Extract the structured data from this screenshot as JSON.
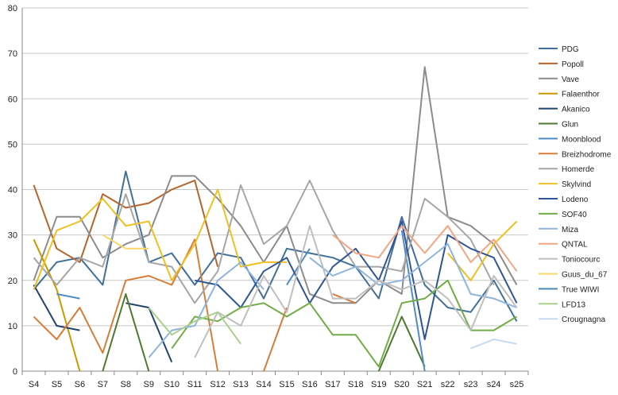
{
  "chart_data": {
    "type": "line",
    "title": "",
    "xlabel": "",
    "ylabel": "",
    "ylim": [
      0,
      80
    ],
    "yticks": [
      0,
      10,
      20,
      30,
      40,
      50,
      60,
      70,
      80
    ],
    "grid": true,
    "legend_position": "right",
    "categories": [
      "S4",
      "S5",
      "S6",
      "S7",
      "S8",
      "S9",
      "S10",
      "S11",
      "S12",
      "S13",
      "S14",
      "S15",
      "S16",
      "S17",
      "S18",
      "S19",
      "S20",
      "S21",
      "s22",
      "s23",
      "s24",
      "s25"
    ],
    "series": [
      {
        "name": "PDG",
        "color": "#41709b",
        "values": [
          18,
          24,
          25,
          19,
          44,
          24,
          26,
          19,
          26,
          25,
          16,
          27,
          26,
          25,
          23,
          16,
          34,
          19,
          14,
          13,
          20,
          11
        ]
      },
      {
        "name": "Popoll",
        "color": "#b7642a",
        "values": [
          41,
          27,
          24,
          39,
          36,
          37,
          40,
          42,
          23,
          null,
          null,
          null,
          null,
          null,
          null,
          null,
          null,
          null,
          null,
          null,
          null,
          null
        ]
      },
      {
        "name": "Vave",
        "color": "#8c8c8c",
        "values": [
          20,
          34,
          34,
          25,
          28,
          30,
          43,
          43,
          38,
          32,
          24,
          32,
          17,
          15,
          15,
          20,
          17,
          67,
          34,
          32,
          28,
          19
        ]
      },
      {
        "name": "Falaenthor",
        "color": "#c99a00",
        "values": [
          29,
          18,
          0,
          null,
          null,
          null,
          null,
          null,
          null,
          null,
          null,
          null,
          null,
          null,
          null,
          null,
          null,
          null,
          null,
          null,
          null,
          null
        ]
      },
      {
        "name": "Akanico",
        "color": "#22436e",
        "values": [
          19,
          10,
          9,
          null,
          15,
          14,
          2,
          null,
          null,
          null,
          null,
          null,
          null,
          null,
          null,
          null,
          null,
          null,
          null,
          null,
          null,
          null
        ]
      },
      {
        "name": "Glun",
        "color": "#4d7a2e",
        "values": [
          null,
          null,
          null,
          0,
          17,
          0,
          null,
          null,
          null,
          null,
          null,
          null,
          null,
          null,
          null,
          0,
          12,
          1,
          null,
          null,
          null,
          null
        ]
      },
      {
        "name": "Moonblood",
        "color": "#4f8cc7",
        "values": [
          null,
          17,
          16,
          null,
          null,
          null,
          null,
          null,
          null,
          null,
          null,
          19,
          27,
          null,
          null,
          null,
          31,
          0,
          null,
          null,
          null,
          null
        ]
      },
      {
        "name": "Breizhodrome",
        "color": "#d77d38",
        "values": [
          12,
          7,
          14,
          4,
          20,
          21,
          19,
          29,
          0,
          null,
          0,
          14,
          null,
          17,
          15,
          null,
          null,
          null,
          null,
          null,
          null,
          null
        ]
      },
      {
        "name": "Homerde",
        "color": "#a6a6a6",
        "values": [
          25,
          19,
          25,
          23,
          39,
          24,
          23,
          15,
          22,
          41,
          28,
          32,
          42,
          31,
          23,
          23,
          22,
          38,
          34,
          29,
          19,
          null
        ]
      },
      {
        "name": "Skylvind",
        "color": "#f0c020",
        "values": [
          18,
          31,
          33,
          38,
          32,
          33,
          20,
          28,
          40,
          23,
          24,
          24,
          null,
          null,
          null,
          null,
          null,
          null,
          26,
          20,
          28,
          33
        ]
      },
      {
        "name": "Lodeno",
        "color": "#2f5597",
        "values": [
          null,
          null,
          null,
          null,
          null,
          null,
          null,
          20,
          19,
          14,
          22,
          25,
          15,
          23,
          27,
          20,
          33,
          7,
          30,
          27,
          25,
          15
        ]
      },
      {
        "name": "SOF40",
        "color": "#70ad47",
        "values": [
          null,
          null,
          null,
          null,
          null,
          null,
          5,
          12,
          11,
          14,
          15,
          12,
          15,
          8,
          8,
          1,
          15,
          16,
          20,
          9,
          9,
          12
        ]
      },
      {
        "name": "Miza",
        "color": "#8fb4de",
        "values": [
          null,
          null,
          null,
          null,
          null,
          3,
          9,
          10,
          20,
          24,
          18,
          null,
          25,
          21,
          23,
          19,
          20,
          24,
          28,
          17,
          16,
          14
        ]
      },
      {
        "name": "QNTAL",
        "color": "#f4a582",
        "values": [
          null,
          null,
          null,
          null,
          null,
          null,
          null,
          null,
          null,
          null,
          null,
          null,
          null,
          30,
          26,
          25,
          32,
          26,
          32,
          24,
          29,
          22
        ]
      },
      {
        "name": "Toniocourc",
        "color": "#bfbfbf",
        "values": [
          null,
          null,
          null,
          null,
          null,
          null,
          null,
          3,
          13,
          10,
          21,
          13,
          32,
          16,
          16,
          20,
          18,
          20,
          16,
          9,
          21,
          14
        ]
      },
      {
        "name": "Guus_du_67",
        "color": "#fad769",
        "values": [
          null,
          null,
          null,
          30,
          27,
          27,
          null,
          null,
          null,
          null,
          null,
          null,
          null,
          null,
          null,
          null,
          null,
          null,
          null,
          null,
          null,
          null
        ]
      },
      {
        "name": "True WIWI",
        "color": "#4e8ab8",
        "values": [
          null,
          null,
          null,
          null,
          null,
          null,
          null,
          null,
          null,
          null,
          null,
          null,
          null,
          null,
          null,
          null,
          null,
          null,
          null,
          null,
          null,
          null
        ]
      },
      {
        "name": "LFD13",
        "color": "#a9d18e",
        "values": [
          null,
          null,
          null,
          null,
          null,
          14,
          8,
          11,
          13,
          6,
          null,
          null,
          null,
          null,
          null,
          null,
          null,
          null,
          null,
          null,
          null,
          null
        ]
      },
      {
        "name": "Crougnagna",
        "color": "#c5d9f1",
        "values": [
          null,
          null,
          null,
          null,
          null,
          null,
          null,
          null,
          null,
          null,
          null,
          null,
          null,
          null,
          null,
          null,
          null,
          null,
          null,
          5,
          7,
          6
        ]
      }
    ]
  }
}
